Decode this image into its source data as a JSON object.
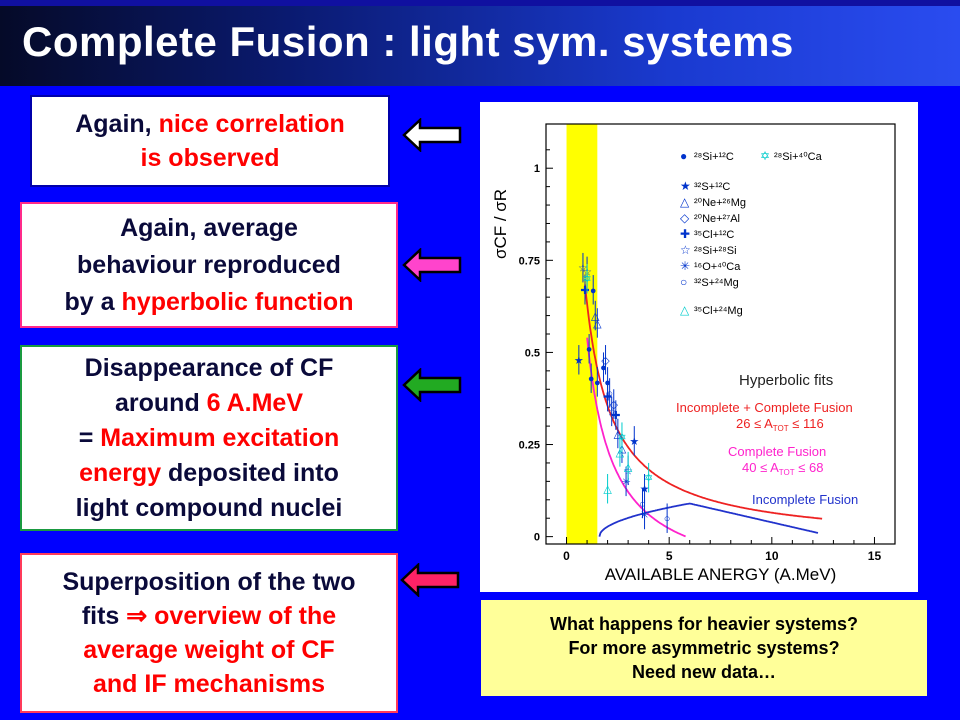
{
  "title": "Complete Fusion : light sym. systems",
  "boxes": {
    "b1": {
      "l1_a": "Again, ",
      "l1_b": "nice correlation",
      "l2": "is observed"
    },
    "b2": {
      "l1": "Again, average",
      "l2": "behaviour reproduced",
      "l3_a": "by a ",
      "l3_b": "hyperbolic function"
    },
    "b3": {
      "l1": "Disappearance of CF",
      "l2_a": "around ",
      "l2_b": "6 A.MeV",
      "l3_a": "= ",
      "l3_b": "Maximum excitation",
      "l4_a": "energy",
      "l4_b": " deposited into",
      "l5": "light compound nuclei"
    },
    "b4": {
      "l1": "Superposition of the two",
      "l2_a": "fits ",
      "l2_arrow": "⇒",
      "l2_b": " overview of the",
      "l3": "average weight of CF",
      "l4": "and IF mechanisms"
    }
  },
  "arrow_colors": {
    "a1": "#ffffff",
    "a2": "#ff44cc",
    "a3": "#22aa22",
    "a4": "#ff2266"
  },
  "note": {
    "l1": "What happens for heavier systems?",
    "l2": "For more asymmetric systems?",
    "l3": "Need new data…"
  },
  "chart_data": {
    "type": "scatter",
    "xlabel": "AVAILABLE ANERGY (A.MeV)",
    "ylabel": "σCF / σR",
    "xlim": [
      -1,
      16
    ],
    "ylim": [
      -0.02,
      1.12
    ],
    "xticks": [
      "0",
      "5",
      "10",
      "15"
    ],
    "yticks": [
      "0",
      "0.25",
      "0.5",
      "0.75",
      "1"
    ],
    "highlight_band": {
      "x_from": 0,
      "x_to": 1.5,
      "color": "#ffff00"
    },
    "legend": [
      {
        "label": "²⁸Si+¹²C",
        "marker": "●",
        "color": "#0033cc"
      },
      {
        "label": "²⁸Si+⁴⁰Ca",
        "marker": "✡",
        "color": "#00cccc"
      },
      {
        "label": "³²S+¹²C",
        "marker": "★",
        "color": "#0033cc"
      },
      {
        "label": "²⁰Ne+²⁶Mg",
        "marker": "△",
        "color": "#0033cc"
      },
      {
        "label": "²⁰Ne+²⁷Al",
        "marker": "◇",
        "color": "#0033cc"
      },
      {
        "label": "³⁵Cl+¹²C",
        "marker": "✚",
        "color": "#0033cc"
      },
      {
        "label": "²⁸Si+²⁸Si",
        "marker": "☆",
        "color": "#0033cc"
      },
      {
        "label": "¹⁶O+⁴⁰Ca",
        "marker": "✳",
        "color": "#0033cc"
      },
      {
        "label": "³²S+²⁴Mg",
        "marker": "○",
        "color": "#0033cc"
      },
      {
        "label": "³⁵Cl+²⁴Mg",
        "marker": "△",
        "color": "#00cccc"
      }
    ],
    "series": [
      {
        "marker": "●",
        "color": "#0033cc",
        "points": [
          [
            1.3,
            0.67
          ],
          [
            1.1,
            0.51
          ],
          [
            1.2,
            0.43
          ],
          [
            1.5,
            0.42
          ],
          [
            1.8,
            0.46
          ],
          [
            2.0,
            0.42
          ]
        ]
      },
      {
        "marker": "★",
        "color": "#0033cc",
        "points": [
          [
            0.6,
            0.48
          ],
          [
            3.8,
            0.13
          ],
          [
            3.3,
            0.26
          ]
        ]
      },
      {
        "marker": "△",
        "color": "#0033cc",
        "points": [
          [
            1.4,
            0.6
          ],
          [
            1.5,
            0.58
          ],
          [
            2.5,
            0.28
          ],
          [
            2.7,
            0.24
          ]
        ]
      },
      {
        "marker": "◇",
        "color": "#0033cc",
        "points": [
          [
            1.9,
            0.48
          ],
          [
            2.3,
            0.36
          ]
        ]
      },
      {
        "marker": "✚",
        "color": "#0033cc",
        "points": [
          [
            0.9,
            0.67
          ],
          [
            2.0,
            0.38
          ],
          [
            2.4,
            0.33
          ]
        ]
      },
      {
        "marker": "☆",
        "color": "#0033cc",
        "points": [
          [
            0.8,
            0.73
          ],
          [
            1.0,
            0.72
          ],
          [
            2.2,
            0.34
          ],
          [
            3.0,
            0.18
          ]
        ]
      },
      {
        "marker": "✳",
        "color": "#0033cc",
        "points": [
          [
            2.9,
            0.15
          ],
          [
            3.8,
            0.06
          ]
        ]
      },
      {
        "marker": "○",
        "color": "#0033cc",
        "points": [
          [
            2.1,
            0.39
          ],
          [
            3.7,
            0.09
          ],
          [
            4.9,
            0.05
          ]
        ]
      },
      {
        "marker": "✡",
        "color": "#00cccc",
        "points": [
          [
            1.0,
            0.7
          ],
          [
            2.7,
            0.27
          ],
          [
            4.0,
            0.16
          ]
        ]
      },
      {
        "marker": "△",
        "color": "#00cccc",
        "points": [
          [
            2.0,
            0.13
          ],
          [
            2.6,
            0.23
          ],
          [
            3.0,
            0.19
          ]
        ]
      }
    ],
    "curves": [
      {
        "color": "#ee2222",
        "formula": "0.88/(x+0.35)-0.02",
        "x_from": 0.9,
        "x_to": 12.5
      },
      {
        "color": "#ff22cc",
        "formula": "0.85/(x+0.25)-0.14",
        "x_from": 1.0,
        "x_to": 5.8
      },
      {
        "color": "#2233cc",
        "formula": "if-curve",
        "x_from": 1.6,
        "x_to": 12.3
      }
    ],
    "annotations": {
      "heading": "Hyperbolic fits",
      "red1": "Incomplete + Complete Fusion",
      "red2": "26 ≤ A",
      "red2_sub": "TOT",
      "red2_end": " ≤ 116",
      "mag1": "Complete Fusion",
      "mag2": "40 ≤ A",
      "mag2_sub": "TOT",
      "mag2_end": " ≤ 68",
      "blue1": "Incomplete Fusion"
    }
  }
}
